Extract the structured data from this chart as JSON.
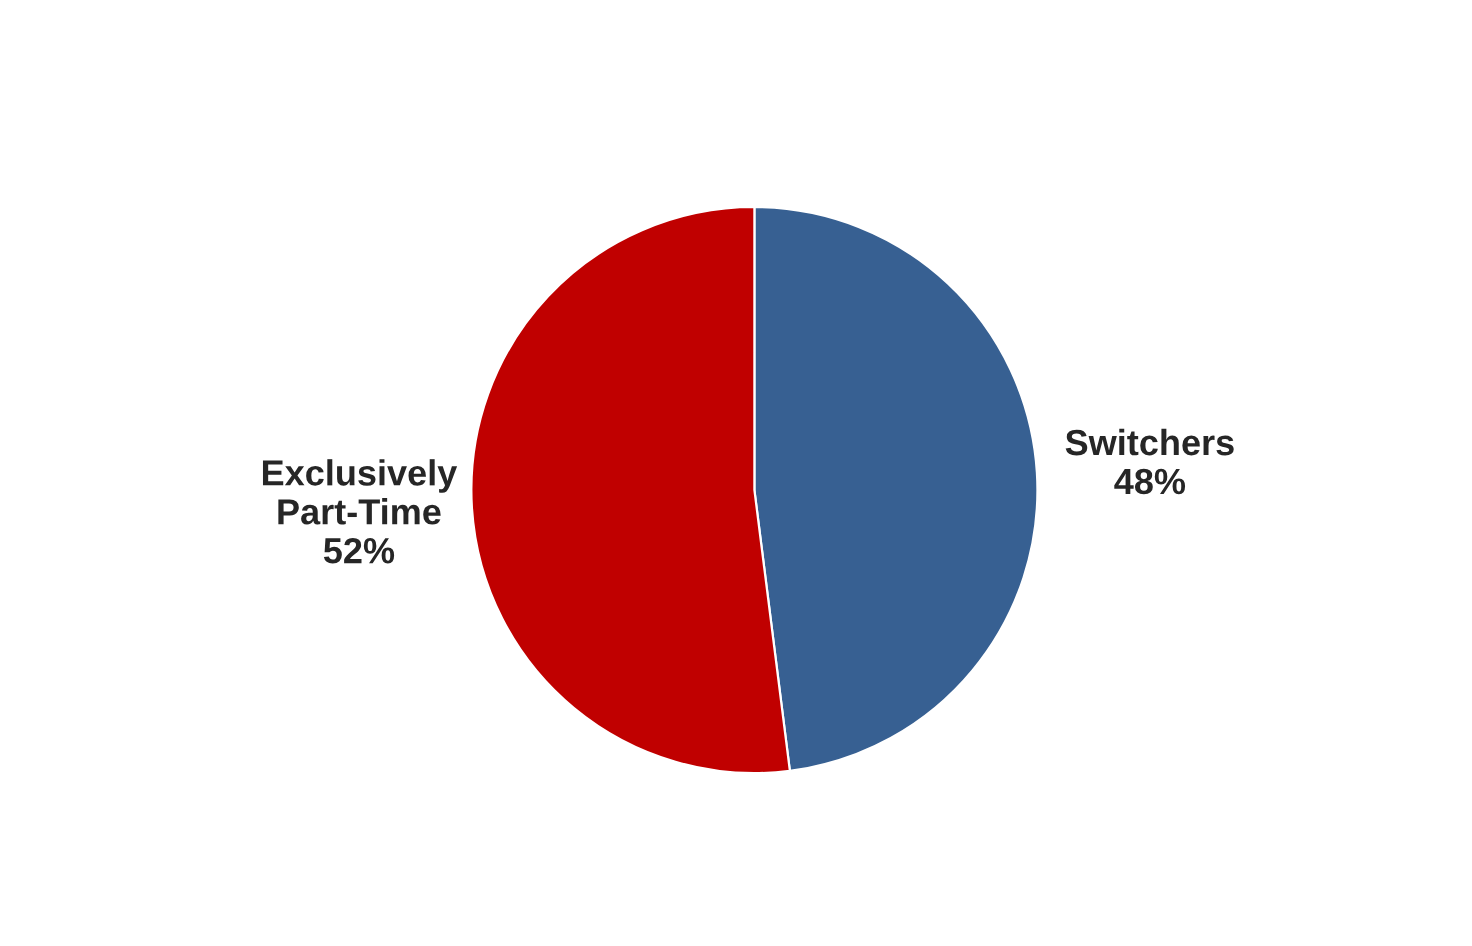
{
  "chart_data": {
    "type": "pie",
    "categories": [
      "Switchers",
      "Exclusively Part-Time"
    ],
    "values": [
      48,
      52
    ],
    "colors": [
      "#376092",
      "#c00000"
    ],
    "value_labels": [
      "48%",
      "52%"
    ],
    "legend": false
  }
}
